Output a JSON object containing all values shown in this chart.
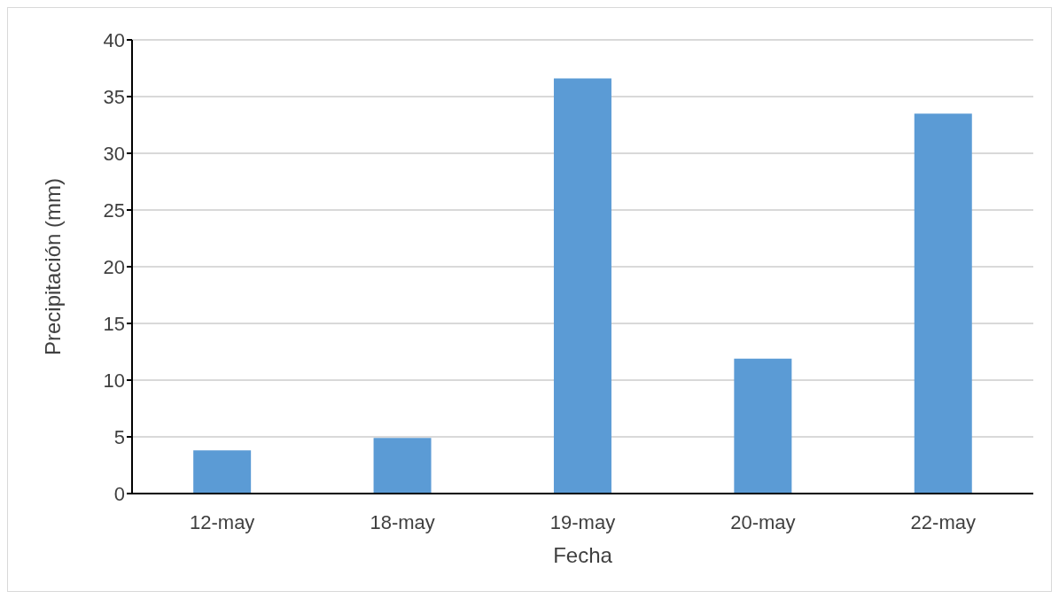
{
  "chart_data": {
    "type": "bar",
    "xlabel": "Fecha",
    "ylabel": "Precipitación (mm)",
    "categories": [
      "12-may",
      "18-may",
      "19-may",
      "20-may",
      "22-may"
    ],
    "values": [
      3.8,
      4.9,
      36.6,
      11.9,
      33.5
    ],
    "color": "#5b9bd5",
    "ylim": [
      0,
      40
    ],
    "yticks": [
      0,
      5,
      10,
      15,
      20,
      25,
      30,
      35,
      40
    ],
    "grid": "y",
    "legend": false
  }
}
